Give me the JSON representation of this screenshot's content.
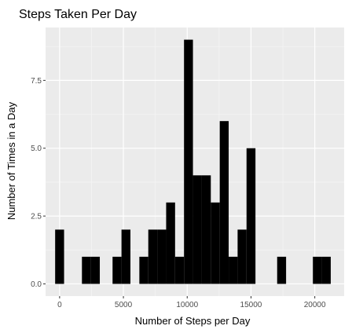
{
  "chart_data": {
    "type": "bar",
    "title": "Steps Taken Per Day",
    "xlabel": "Number of Steps per Day",
    "ylabel": "Number of Times in a Day",
    "xlim": [
      -1100,
      22300
    ],
    "ylim": [
      -0.45,
      9.45
    ],
    "x_ticks": [
      {
        "value": 0,
        "label": "0"
      },
      {
        "value": 5000,
        "label": "5000"
      },
      {
        "value": 10000,
        "label": "10000"
      },
      {
        "value": 15000,
        "label": "15000"
      },
      {
        "value": 20000,
        "label": "20000"
      }
    ],
    "y_ticks": [
      {
        "value": 0,
        "label": "0.0"
      },
      {
        "value": 2.5,
        "label": "2.5"
      },
      {
        "value": 5,
        "label": "5.0"
      },
      {
        "value": 7.5,
        "label": "7.5"
      }
    ],
    "bin_width": 700,
    "bins": [
      {
        "x_start": -350,
        "x_end": 350,
        "count": 2
      },
      {
        "x_start": 1750,
        "x_end": 2450,
        "count": 1
      },
      {
        "x_start": 2450,
        "x_end": 3150,
        "count": 1
      },
      {
        "x_start": 4150,
        "x_end": 4850,
        "count": 1
      },
      {
        "x_start": 4850,
        "x_end": 5550,
        "count": 2
      },
      {
        "x_start": 6250,
        "x_end": 6950,
        "count": 1
      },
      {
        "x_start": 6950,
        "x_end": 7650,
        "count": 2
      },
      {
        "x_start": 7650,
        "x_end": 8350,
        "count": 2
      },
      {
        "x_start": 8350,
        "x_end": 9050,
        "count": 3
      },
      {
        "x_start": 9050,
        "x_end": 9750,
        "count": 1
      },
      {
        "x_start": 9750,
        "x_end": 10450,
        "count": 9
      },
      {
        "x_start": 10450,
        "x_end": 11150,
        "count": 4
      },
      {
        "x_start": 11150,
        "x_end": 11850,
        "count": 4
      },
      {
        "x_start": 11850,
        "x_end": 12550,
        "count": 3
      },
      {
        "x_start": 12550,
        "x_end": 13250,
        "count": 6
      },
      {
        "x_start": 13250,
        "x_end": 13950,
        "count": 1
      },
      {
        "x_start": 13950,
        "x_end": 14650,
        "count": 2
      },
      {
        "x_start": 14650,
        "x_end": 15350,
        "count": 5
      },
      {
        "x_start": 17050,
        "x_end": 17750,
        "count": 1
      },
      {
        "x_start": 19850,
        "x_end": 20550,
        "count": 1
      },
      {
        "x_start": 20550,
        "x_end": 21250,
        "count": 1
      }
    ],
    "grid": true,
    "colors": {
      "panel_background": "#ebebeb",
      "grid_major": "#ffffff",
      "grid_minor": "#f5f5f5",
      "bar_fill": "#000000",
      "tick_mark": "#333333"
    }
  }
}
